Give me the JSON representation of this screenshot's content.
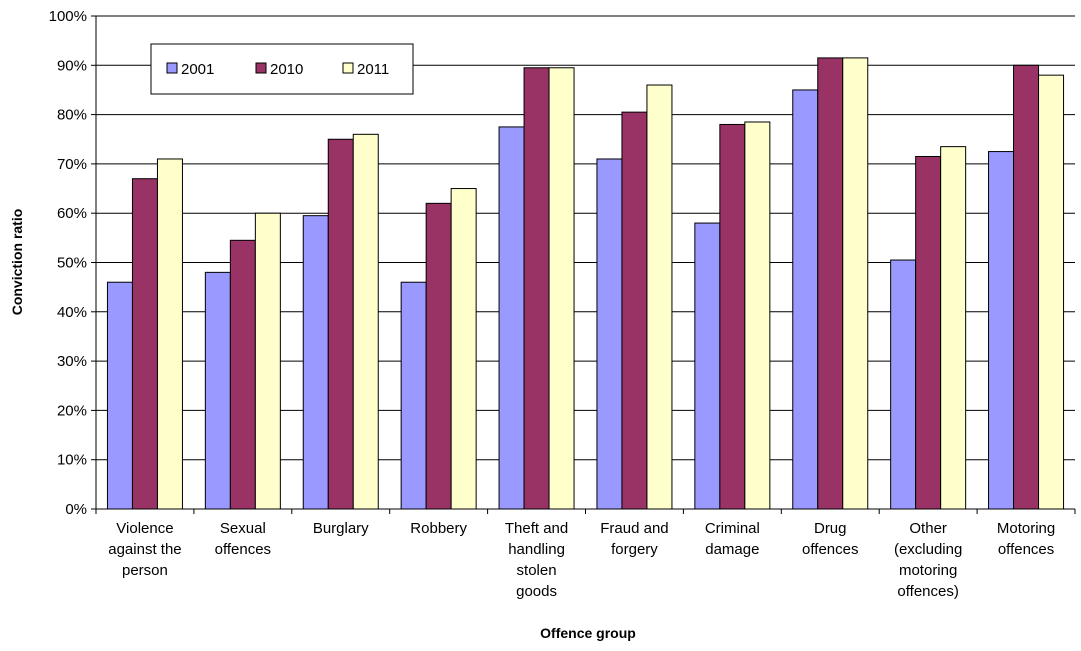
{
  "chart_data": {
    "type": "bar",
    "title": "",
    "xlabel": "Offence group",
    "ylabel": "Conviction ratio",
    "ylim": [
      0,
      100
    ],
    "y_ticks": [
      "0%",
      "10%",
      "20%",
      "30%",
      "40%",
      "50%",
      "60%",
      "70%",
      "80%",
      "90%",
      "100%"
    ],
    "grid": true,
    "legend_position": "top-left",
    "categories": [
      [
        "Violence",
        "against the",
        "person"
      ],
      [
        "Sexual",
        "offences"
      ],
      [
        "Burglary"
      ],
      [
        "Robbery"
      ],
      [
        "Theft and",
        "handling",
        "stolen",
        "goods"
      ],
      [
        "Fraud and",
        "forgery"
      ],
      [
        "Criminal",
        "damage"
      ],
      [
        "Drug",
        "offences"
      ],
      [
        "Other",
        "(excluding",
        "motoring",
        "offences)"
      ],
      [
        "Motoring",
        "offences"
      ]
    ],
    "series": [
      {
        "name": "2001",
        "color": "#9999FF",
        "values": [
          46,
          48,
          59.5,
          46,
          77.5,
          71,
          58,
          85,
          50.5,
          72.5
        ]
      },
      {
        "name": "2010",
        "color": "#993366",
        "values": [
          67,
          54.5,
          75,
          62,
          89.5,
          80.5,
          78,
          91.5,
          71.5,
          90
        ]
      },
      {
        "name": "2011",
        "color": "#FFFFCC",
        "values": [
          71,
          60,
          76,
          65,
          89.5,
          86,
          78.5,
          91.5,
          73.5,
          88
        ]
      }
    ]
  }
}
